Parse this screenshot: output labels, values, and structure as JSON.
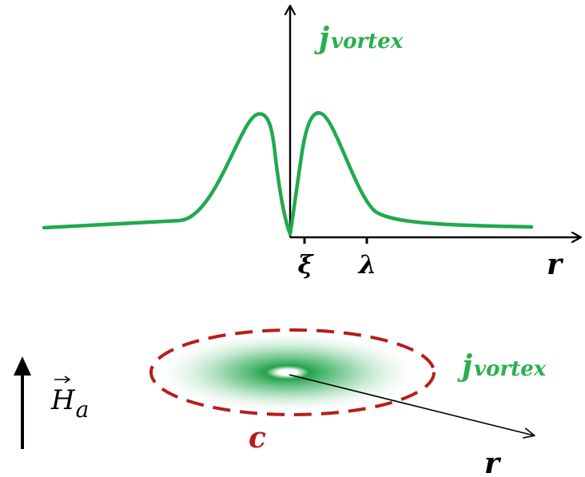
{
  "colors": {
    "curve": "#1faa4f",
    "label_green": "#27b04e",
    "contour": "#b81c1c",
    "axis": "#000000"
  },
  "plot": {
    "ylabel_main": "j",
    "ylabel_sub": "vortex",
    "xlabel": "r",
    "tick_xi": "ξ",
    "tick_lambda": "λ"
  },
  "vortex": {
    "label_main": "j",
    "label_sub": "vortex",
    "contour_label": "c",
    "radius_label": "r",
    "field_label_main": "H",
    "field_label_sub": "a",
    "field_arrow_icon": "up-arrow-icon",
    "vector_accent_icon": "vector-arrow-icon"
  }
}
